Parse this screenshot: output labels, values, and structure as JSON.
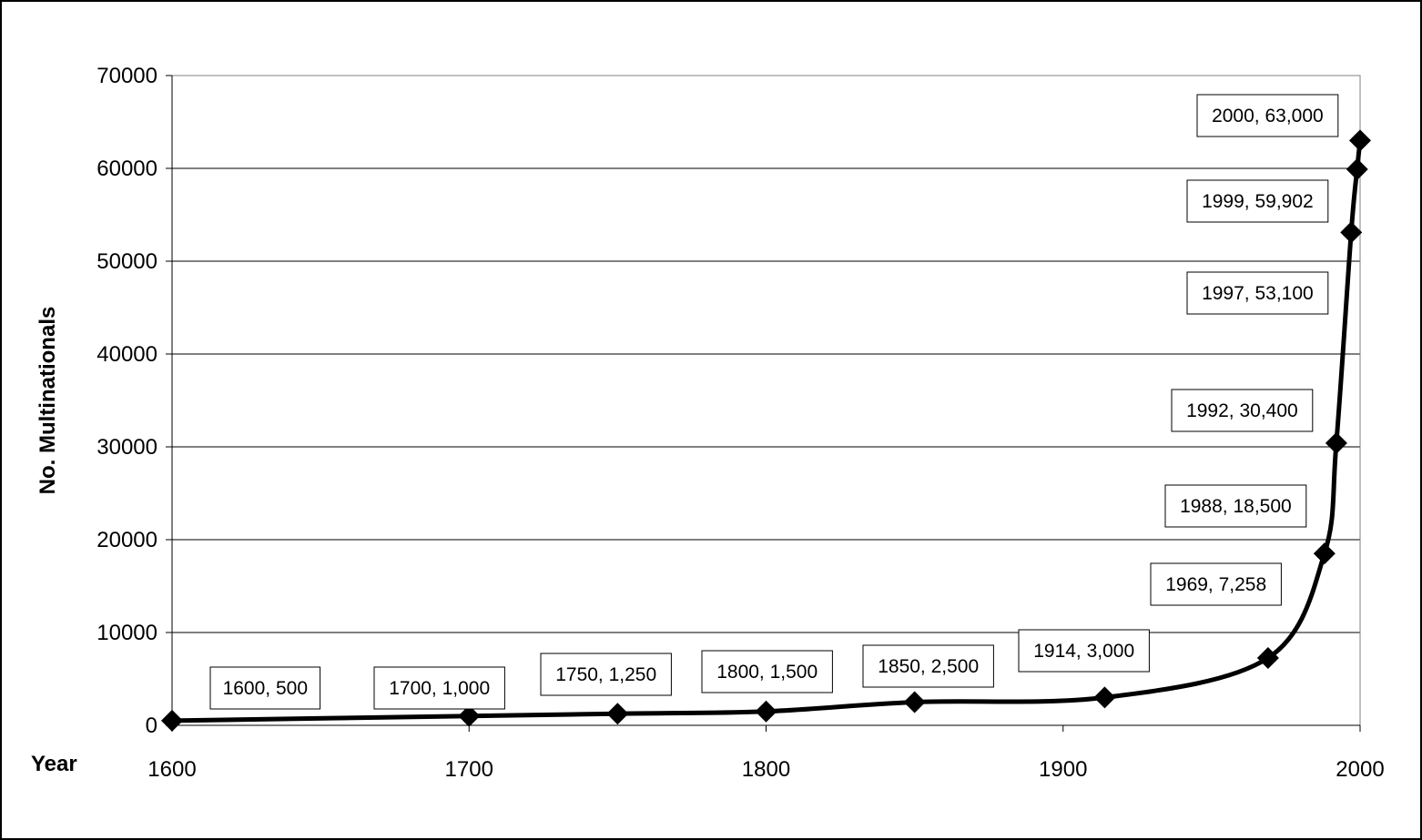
{
  "chart_data": {
    "type": "line",
    "title": "",
    "xlabel": "Year",
    "ylabel": "No. Multinationals",
    "xlim": [
      1600,
      2000
    ],
    "ylim": [
      0,
      70000
    ],
    "x_ticks": [
      1600,
      1700,
      1800,
      1900,
      2000
    ],
    "y_ticks": [
      0,
      10000,
      20000,
      30000,
      40000,
      50000,
      60000,
      70000
    ],
    "grid": "horizontal",
    "legend": "none",
    "smoothed": true,
    "marker": "diamond",
    "line_color": "#000000",
    "series": [
      {
        "x": [
          1600,
          1700,
          1750,
          1800,
          1850,
          1914,
          1969,
          1988,
          1992,
          1997,
          1999,
          2000
        ],
        "y": [
          500,
          1000,
          1250,
          1500,
          2500,
          3000,
          7258,
          18500,
          30400,
          53100,
          59902,
          63000
        ],
        "labels": [
          "1600, 500",
          "1700, 1,000",
          "1750, 1,250",
          "1800, 1,500",
          "1850, 2,500",
          "1914, 3,000",
          "1969, 7,258",
          "1988, 18,500",
          "1992, 30,400",
          "1997, 53,100",
          "1999, 59,902",
          "2000, 63,000"
        ]
      }
    ]
  }
}
